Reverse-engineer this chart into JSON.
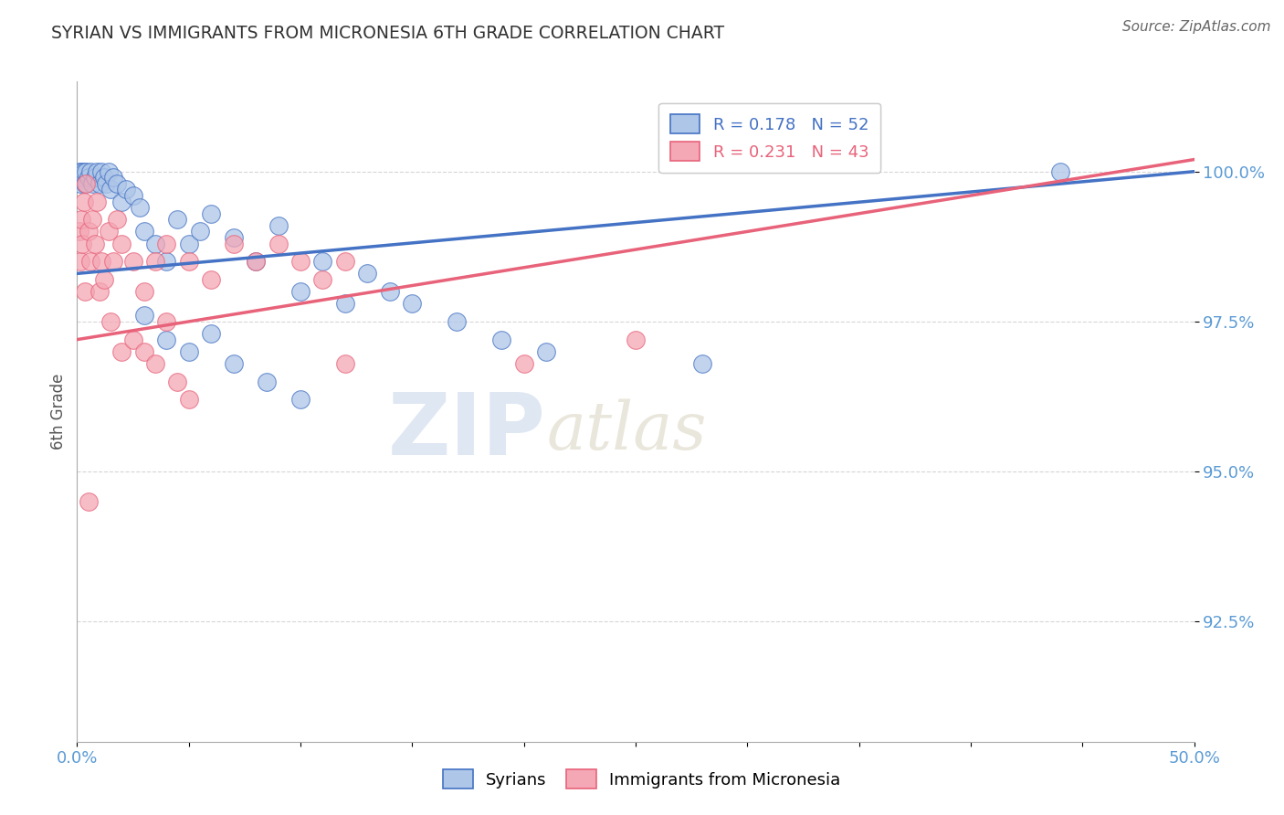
{
  "title": "SYRIAN VS IMMIGRANTS FROM MICRONESIA 6TH GRADE CORRELATION CHART",
  "source": "Source: ZipAtlas.com",
  "ylabel": "6th Grade",
  "xlim": [
    0.0,
    50.0
  ],
  "ylim": [
    90.5,
    101.5
  ],
  "yticks": [
    92.5,
    95.0,
    97.5,
    100.0
  ],
  "ytick_labels": [
    "92.5%",
    "95.0%",
    "97.5%",
    "100.0%"
  ],
  "xticks": [
    0.0,
    5.0,
    10.0,
    15.0,
    20.0,
    25.0,
    30.0,
    35.0,
    40.0,
    45.0,
    50.0
  ],
  "xtick_labels": [
    "0.0%",
    "",
    "",
    "",
    "",
    "",
    "",
    "",
    "",
    "",
    "50.0%"
  ],
  "blue_R": 0.178,
  "blue_N": 52,
  "pink_R": 0.231,
  "pink_N": 43,
  "blue_scatter_x": [
    0.1,
    0.15,
    0.2,
    0.25,
    0.3,
    0.35,
    0.4,
    0.5,
    0.6,
    0.7,
    0.8,
    0.9,
    1.0,
    1.1,
    1.2,
    1.3,
    1.4,
    1.5,
    1.6,
    1.8,
    2.0,
    2.2,
    2.5,
    2.8,
    3.0,
    3.5,
    4.0,
    4.5,
    5.0,
    5.5,
    6.0,
    7.0,
    8.0,
    9.0,
    10.0,
    11.0,
    12.0,
    13.0,
    14.0,
    15.0,
    17.0,
    19.0,
    21.0,
    3.0,
    4.0,
    5.0,
    6.0,
    7.0,
    8.5,
    10.0,
    44.0,
    28.0
  ],
  "blue_scatter_y": [
    100.0,
    99.8,
    100.0,
    99.9,
    100.0,
    99.8,
    100.0,
    99.9,
    100.0,
    99.8,
    99.9,
    100.0,
    99.8,
    100.0,
    99.9,
    99.8,
    100.0,
    99.7,
    99.9,
    99.8,
    99.5,
    99.7,
    99.6,
    99.4,
    99.0,
    98.8,
    98.5,
    99.2,
    98.8,
    99.0,
    99.3,
    98.9,
    98.5,
    99.1,
    98.0,
    98.5,
    97.8,
    98.3,
    98.0,
    97.8,
    97.5,
    97.2,
    97.0,
    97.6,
    97.2,
    97.0,
    97.3,
    96.8,
    96.5,
    96.2,
    100.0,
    96.8
  ],
  "pink_scatter_x": [
    0.1,
    0.15,
    0.2,
    0.25,
    0.3,
    0.35,
    0.4,
    0.5,
    0.6,
    0.7,
    0.8,
    0.9,
    1.0,
    1.1,
    1.2,
    1.4,
    1.6,
    1.8,
    2.0,
    2.5,
    3.0,
    3.5,
    4.0,
    5.0,
    6.0,
    7.0,
    8.0,
    9.0,
    10.0,
    11.0,
    12.0,
    1.5,
    2.0,
    2.5,
    3.0,
    3.5,
    4.0,
    4.5,
    5.0,
    20.0,
    25.0,
    12.0,
    0.5
  ],
  "pink_scatter_y": [
    99.0,
    98.5,
    99.2,
    98.8,
    99.5,
    98.0,
    99.8,
    99.0,
    98.5,
    99.2,
    98.8,
    99.5,
    98.0,
    98.5,
    98.2,
    99.0,
    98.5,
    99.2,
    98.8,
    98.5,
    98.0,
    98.5,
    98.8,
    98.5,
    98.2,
    98.8,
    98.5,
    98.8,
    98.5,
    98.2,
    98.5,
    97.5,
    97.0,
    97.2,
    97.0,
    96.8,
    97.5,
    96.5,
    96.2,
    96.8,
    97.2,
    96.8,
    94.5
  ],
  "blue_line_x0": 0.0,
  "blue_line_y0": 98.3,
  "blue_line_x1": 50.0,
  "blue_line_y1": 100.0,
  "pink_line_x0": 0.0,
  "pink_line_y0": 97.2,
  "pink_line_x1": 50.0,
  "pink_line_y1": 100.2,
  "blue_line_color": "#4472C4",
  "pink_line_color": "#E8637A",
  "blue_scatter_color": "#AEC6E8",
  "pink_scatter_color": "#F4A7B5",
  "legend_blue_label": "R = 0.178   N = 52",
  "legend_pink_label": "R = 0.231   N = 43",
  "legend_series_blue": "Syrians",
  "legend_series_pink": "Immigrants from Micronesia",
  "watermark_zip": "ZIP",
  "watermark_atlas": "atlas",
  "background_color": "#ffffff",
  "grid_color": "#cccccc",
  "title_color": "#333333",
  "tick_label_color": "#5b9bd5"
}
